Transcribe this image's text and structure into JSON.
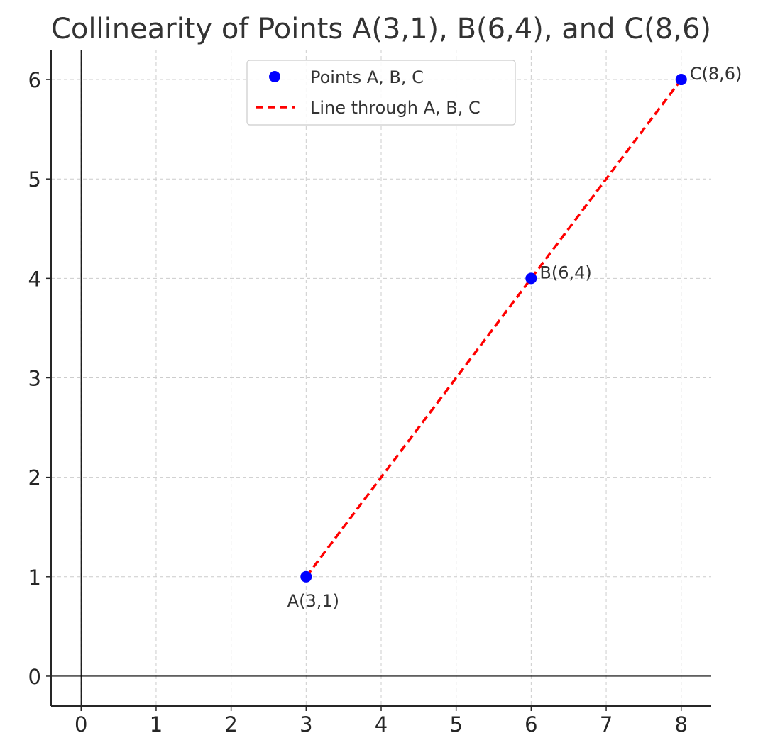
{
  "chart_data": {
    "type": "line",
    "title": "Collinearity of Points A(3,1), B(6,4), and C(8,6)",
    "xlabel": "",
    "ylabel": "",
    "xlim": [
      -0.4,
      8.4
    ],
    "ylim": [
      -0.3,
      6.3
    ],
    "xticks": [
      0,
      1,
      2,
      3,
      4,
      5,
      6,
      7,
      8
    ],
    "yticks": [
      0,
      1,
      2,
      3,
      4,
      5,
      6
    ],
    "grid": true,
    "legend_position": "top-center",
    "series": [
      {
        "name": "Points A, B, C",
        "kind": "scatter",
        "color": "#0000ff",
        "points": [
          {
            "x": 3,
            "y": 1
          },
          {
            "x": 6,
            "y": 4
          },
          {
            "x": 8,
            "y": 6
          }
        ]
      },
      {
        "name": "Line through A, B, C",
        "kind": "line",
        "style": "dashed",
        "color": "#ff0000",
        "points": [
          {
            "x": 3,
            "y": 1
          },
          {
            "x": 6,
            "y": 4
          },
          {
            "x": 8,
            "y": 6
          }
        ]
      }
    ],
    "annotations": [
      {
        "text": "A(3,1)",
        "x": 3,
        "y": 1,
        "placement": "below"
      },
      {
        "text": "B(6,4)",
        "x": 6,
        "y": 4,
        "placement": "right"
      },
      {
        "text": "C(8,6)",
        "x": 8,
        "y": 6,
        "placement": "right"
      }
    ],
    "reference_lines": {
      "x_axis_at": 0,
      "y_axis_at": 0
    }
  }
}
